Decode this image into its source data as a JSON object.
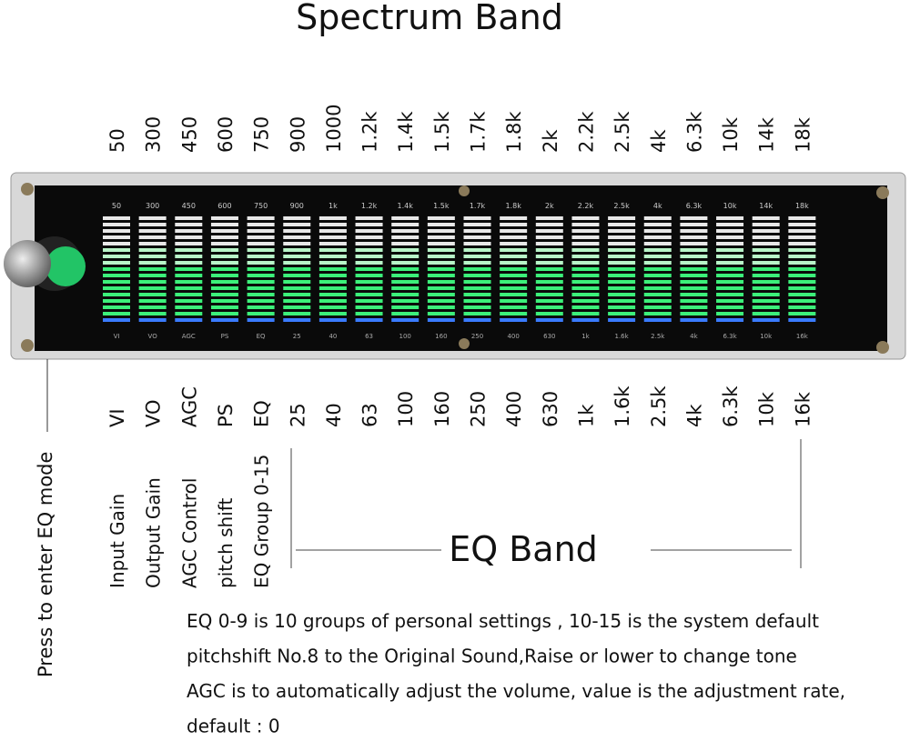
{
  "title": "Spectrum Band",
  "spectrum_band": [
    "50",
    "300",
    "450",
    "600",
    "750",
    "900",
    "1000",
    "1.2k",
    "1.4k",
    "1.5k",
    "1.7k",
    "1.8k",
    "2k",
    "2.2k",
    "2.5k",
    "4k",
    "6.3k",
    "10k",
    "14k",
    "18k"
  ],
  "device_top_labels": [
    "50",
    "300",
    "450",
    "600",
    "750",
    "900",
    "1k",
    "1.2k",
    "1.4k",
    "1.5k",
    "1.7k",
    "1.8k",
    "2k",
    "2.2k",
    "2.5k",
    "4k",
    "6.3k",
    "10k",
    "14k",
    "18k"
  ],
  "bottom_labels": [
    "VI",
    "VO",
    "AGC",
    "PS",
    "EQ",
    "25",
    "40",
    "63",
    "100",
    "160",
    "250",
    "400",
    "630",
    "1k",
    "1.6k",
    "2.5k",
    "4k",
    "6.3k",
    "10k",
    "16k"
  ],
  "descriptions": [
    "Input Gain",
    "Output Gain",
    "AGC Control",
    "pitch shift",
    "EQ Group 0-15"
  ],
  "knob_note": "Press to enter EQ mode",
  "eq_band": "EQ Band",
  "notes": [
    "EQ 0-9 is 10 groups of personal settings  , 10-15 is the system default",
    "pitchshift No.8 to the Original Sound,Raise or lower to change tone",
    "AGC is to automatically adjust the volume, value is the adjustment rate,",
    "default : 0"
  ]
}
